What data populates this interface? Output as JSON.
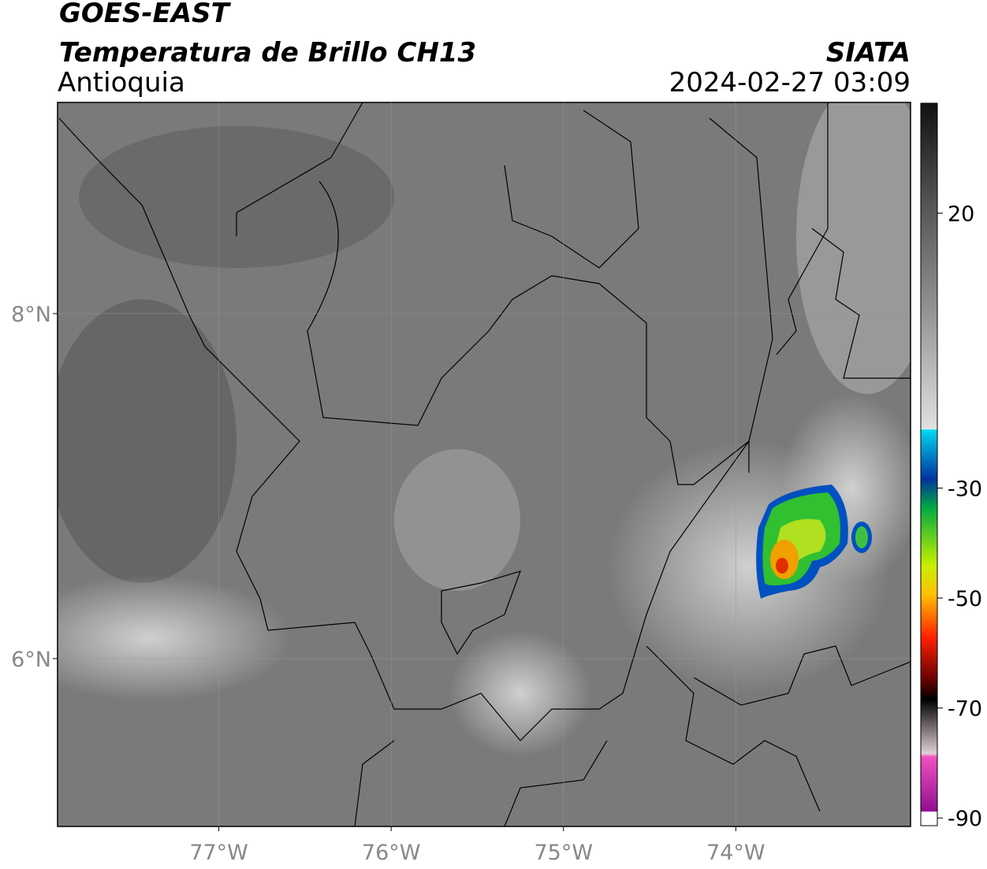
{
  "header": {
    "title": "GOES-EAST",
    "product": "Temperatura de Brillo CH13",
    "region": "Antioquia",
    "source": "SIATA",
    "datetime": "2024-02-27 03:09"
  },
  "map": {
    "xlim": [
      -77.936,
      -72.986
    ],
    "ylim": [
      5.027,
      9.224
    ],
    "xticks": [
      {
        "value": -77,
        "label": "77°W"
      },
      {
        "value": -76,
        "label": "76°W"
      },
      {
        "value": -75,
        "label": "75°W"
      },
      {
        "value": -74,
        "label": "74°W"
      }
    ],
    "yticks": [
      {
        "value": 8,
        "label": "8°N"
      },
      {
        "value": 6,
        "label": "6°N"
      }
    ],
    "grid": true
  },
  "colorbar": {
    "lim": [
      -91.4,
      40
    ],
    "ticks": [
      20,
      -30,
      -50,
      -70,
      -90
    ]
  }
}
